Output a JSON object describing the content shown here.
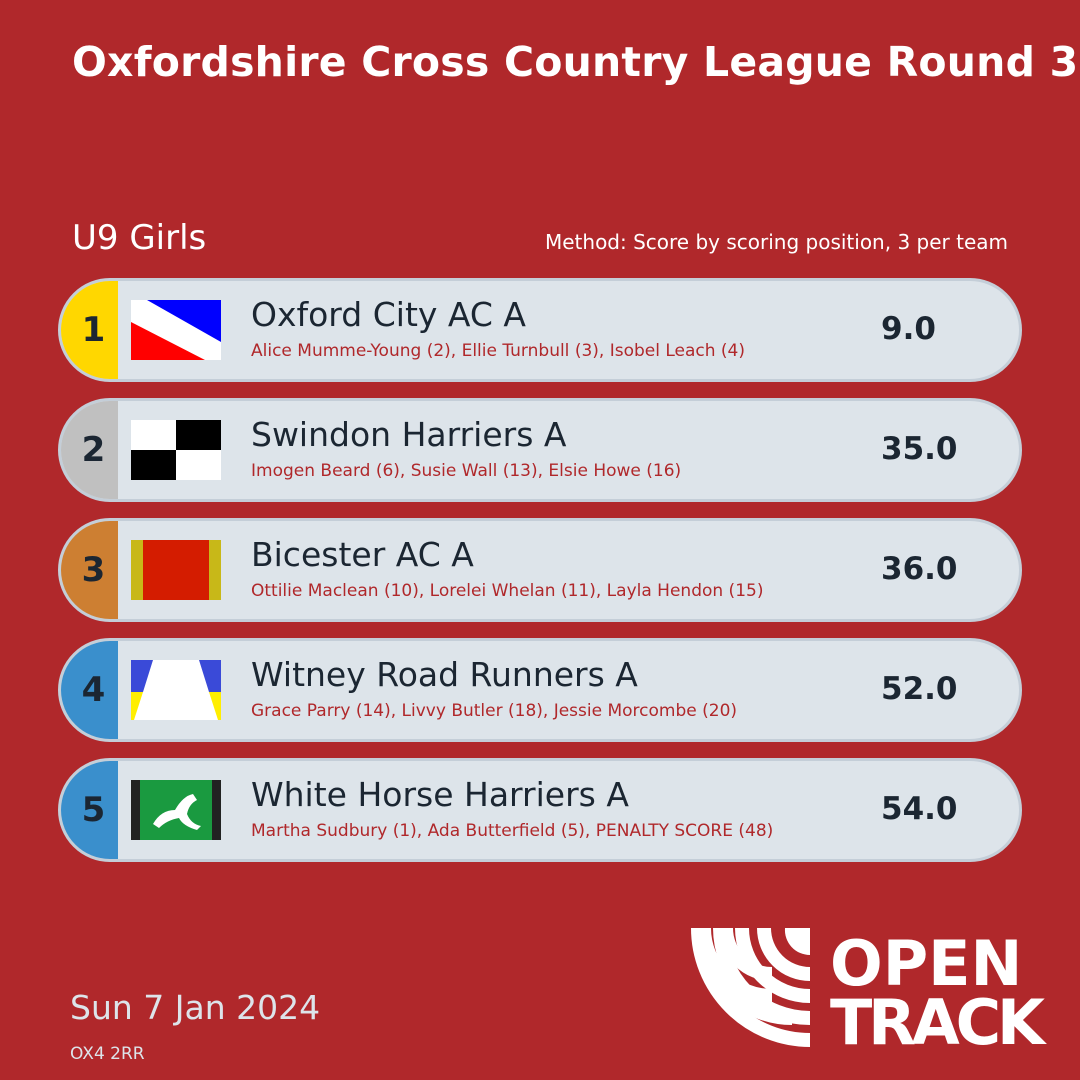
{
  "title": "Oxfordshire Cross Country League Round 3",
  "category": "U9 Girls",
  "method": "Method: Score by scoring position, 3 per team",
  "results": [
    {
      "position": "1",
      "team": "Oxford City AC A",
      "players": "Alice Mumme-Young (2), Ellie Turnbull (3), Isobel Leach (4)",
      "score": "9.0",
      "badge_color": "#ffd700",
      "flag": "oxford-city-flag"
    },
    {
      "position": "2",
      "team": "Swindon Harriers A",
      "players": "Imogen Beard (6), Susie Wall (13), Elsie Howe (16)",
      "score": "35.0",
      "badge_color": "#c0c0c0",
      "flag": "swindon-flag"
    },
    {
      "position": "3",
      "team": "Bicester AC A",
      "players": "Ottilie Maclean (10), Lorelei Whelan (11), Layla Hendon (15)",
      "score": "36.0",
      "badge_color": "#cd7f32",
      "flag": "bicester-flag"
    },
    {
      "position": "4",
      "team": "Witney Road Runners A",
      "players": "Grace Parry (14), Livvy Butler (18), Jessie Morcombe (20)",
      "score": "52.0",
      "badge_color": "#3a8fcc",
      "flag": "witney-flag"
    },
    {
      "position": "5",
      "team": "White Horse Harriers A",
      "players": "Martha Sudbury (1), Ada Butterfield (5), PENALTY SCORE (48)",
      "score": "54.0",
      "badge_color": "#3a8fcc",
      "flag": "white-horse-flag"
    }
  ],
  "date": "Sun 7 Jan 2024",
  "postcode": "OX4 2RR",
  "logo": {
    "line1": "OPEN",
    "line2": "TRACK"
  }
}
